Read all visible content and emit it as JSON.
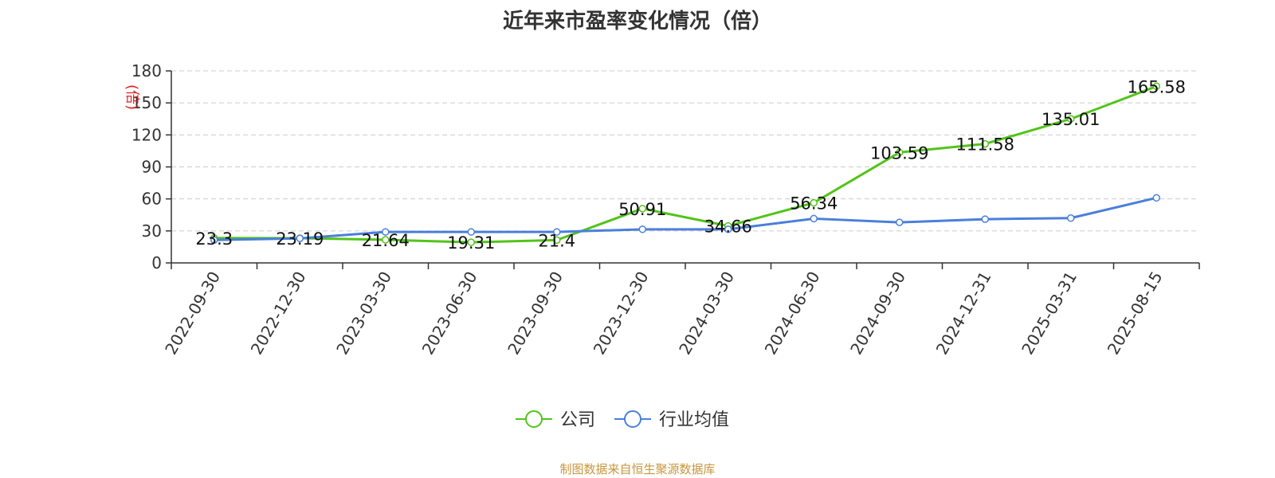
{
  "title": "近年来市盈率变化情况（倍）",
  "source_note": "制图数据来自恒生聚源数据库",
  "chart_data": {
    "type": "line",
    "title": "近年来市盈率变化情况（倍）",
    "y_unit": "(倍)",
    "x": [
      "2022-09-30",
      "2022-12-30",
      "2023-03-30",
      "2023-06-30",
      "2023-09-30",
      "2023-12-30",
      "2024-03-30",
      "2024-06-30",
      "2024-09-30",
      "2024-12-31",
      "2025-03-31",
      "2025-08-15"
    ],
    "ylim": [
      0,
      180
    ],
    "yticks": [
      0,
      30,
      60,
      90,
      120,
      150,
      180
    ],
    "grid": true,
    "legend_position": "bottom",
    "series": [
      {
        "name": "公司",
        "color": "#52c41a",
        "show_labels": true,
        "values": [
          23.3,
          23.19,
          21.64,
          19.31,
          21.4,
          50.91,
          34.66,
          56.34,
          103.59,
          111.58,
          135.01,
          165.58
        ]
      },
      {
        "name": "行业均值",
        "color": "#4a7fdc",
        "show_labels": false,
        "values": [
          21.5,
          23.0,
          29.0,
          29.0,
          29.0,
          31.5,
          31.5,
          41.5,
          38.0,
          41.0,
          42.0,
          61.0
        ]
      }
    ]
  }
}
